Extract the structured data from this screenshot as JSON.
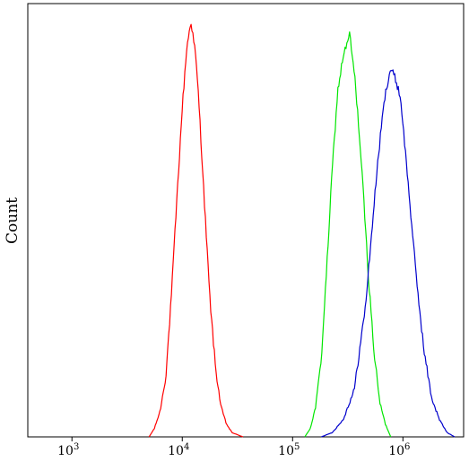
{
  "chart_data": {
    "type": "line",
    "title": "",
    "xlabel": "",
    "ylabel": "Count",
    "x_scale": "log",
    "xlim": [
      398,
      3550000
    ],
    "ylim": [
      0,
      1.0
    ],
    "grid": false,
    "legend": "none",
    "x_ticks": [
      {
        "value": 1000,
        "base": "10",
        "exp": "3"
      },
      {
        "value": 10000,
        "base": "10",
        "exp": "4"
      },
      {
        "value": 100000,
        "base": "10",
        "exp": "5"
      },
      {
        "value": 1000000,
        "base": "10",
        "exp": "6"
      }
    ],
    "series": [
      {
        "color": "#ff0000",
        "peak_x": 12000,
        "peak_y": 0.96,
        "x": [
          5000,
          5600,
          6300,
          7100,
          7900,
          8900,
          10000,
          11000,
          11500,
          12000,
          12600,
          13200,
          14100,
          15800,
          17800,
          20000,
          22400,
          25100,
          28200,
          31600,
          35500
        ],
        "y": [
          0.0,
          0.02,
          0.06,
          0.14,
          0.31,
          0.54,
          0.76,
          0.9,
          0.93,
          0.96,
          0.92,
          0.88,
          0.78,
          0.55,
          0.32,
          0.16,
          0.07,
          0.03,
          0.01,
          0.005,
          0.0
        ]
      },
      {
        "color": "#00e600",
        "peak_x": 330000,
        "peak_y": 0.93,
        "x": [
          129000,
          145000,
          162000,
          182000,
          204000,
          229000,
          257000,
          288000,
          315000,
          330000,
          346000,
          363000,
          389000,
          436000,
          490000,
          550000,
          617000,
          692000,
          776000
        ],
        "y": [
          0.0,
          0.02,
          0.07,
          0.18,
          0.39,
          0.62,
          0.8,
          0.88,
          0.91,
          0.93,
          0.88,
          0.84,
          0.75,
          0.57,
          0.36,
          0.19,
          0.08,
          0.03,
          0.0
        ]
      },
      {
        "color": "#0000cc",
        "peak_x": 760000,
        "peak_y": 0.85,
        "x": [
          182000,
          229000,
          288000,
          363000,
          457000,
          513000,
          575000,
          646000,
          692000,
          741000,
          776000,
          813000,
          871000,
          955000,
          1120000,
          1320000,
          1550000,
          1820000,
          2140000,
          2510000,
          2950000
        ],
        "y": [
          0.0,
          0.01,
          0.04,
          0.11,
          0.3,
          0.45,
          0.6,
          0.73,
          0.79,
          0.83,
          0.85,
          0.84,
          0.82,
          0.78,
          0.58,
          0.37,
          0.2,
          0.09,
          0.04,
          0.01,
          0.0
        ]
      }
    ]
  }
}
